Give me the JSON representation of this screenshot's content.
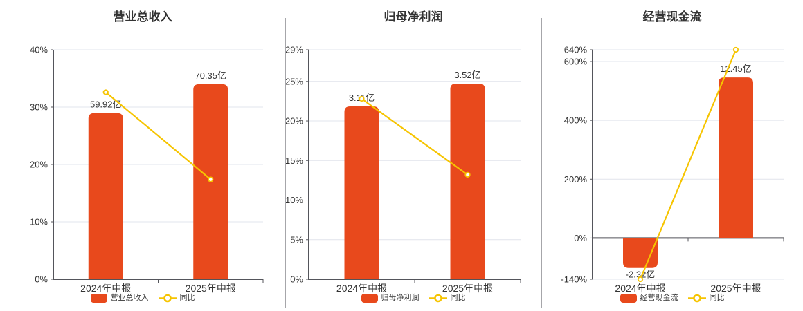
{
  "colors": {
    "background": "#ffffff",
    "bar": "#e8491c",
    "line": "#f6c400",
    "marker_fill": "#ffffff",
    "grid": "#e1e4ec",
    "axis": "#54555b",
    "divider": "#a6a6aa",
    "text": "#333333"
  },
  "chart_data": [
    {
      "type": "bar+line",
      "title": "营业总收入",
      "categories": [
        "2024年中报",
        "2025年中报"
      ],
      "bar_series": {
        "name": "营业总收入",
        "unit": "亿",
        "values": [
          59.92,
          70.35
        ],
        "labels": [
          "59.92亿",
          "70.35亿"
        ]
      },
      "line_series": {
        "name": "同比",
        "unit": "%",
        "values_pct": [
          32.6,
          17.4
        ]
      },
      "y_axis": {
        "min": 0,
        "max": 40,
        "ticks": [
          0,
          10,
          20,
          30,
          40
        ],
        "tick_labels": [
          "0%",
          "10%",
          "20%",
          "30%",
          "40%"
        ]
      },
      "bar_axis_max": 82.8,
      "grid": true,
      "legend_position": "bottom"
    },
    {
      "type": "bar+line",
      "title": "归母净利润",
      "categories": [
        "2024年中报",
        "2025年中报"
      ],
      "bar_series": {
        "name": "归母净利润",
        "unit": "亿",
        "values": [
          3.11,
          3.52
        ],
        "labels": [
          "3.11亿",
          "3.52亿"
        ]
      },
      "line_series": {
        "name": "同比",
        "unit": "%",
        "values_pct": [
          22.8,
          13.2
        ]
      },
      "y_axis": {
        "min": 0,
        "max": 29,
        "ticks": [
          0,
          5,
          10,
          15,
          20,
          25,
          29
        ],
        "tick_labels": [
          "0%",
          "5%",
          "10%",
          "15%",
          "20%",
          "25%",
          "29%"
        ]
      },
      "bar_axis_max": 4.13,
      "grid": true,
      "legend_position": "bottom"
    },
    {
      "type": "bar+line",
      "title": "经营现金流",
      "categories": [
        "2024年中报",
        "2025年中报"
      ],
      "bar_series": {
        "name": "经营现金流",
        "unit": "亿",
        "values": [
          -2.32,
          12.45
        ],
        "labels": [
          "-2.32亿",
          "12.45亿"
        ]
      },
      "line_series": {
        "name": "同比",
        "unit": "%",
        "values_pct": [
          -140,
          640
        ]
      },
      "y_axis": {
        "min": -140,
        "max": 640,
        "ticks": [
          -140,
          0,
          200,
          400,
          600,
          640
        ],
        "tick_labels": [
          "-140%",
          "0%",
          "200%",
          "400%",
          "600%",
          "640%"
        ]
      },
      "bar_axis_max": 14.6,
      "grid": true,
      "legend_position": "bottom"
    }
  ]
}
